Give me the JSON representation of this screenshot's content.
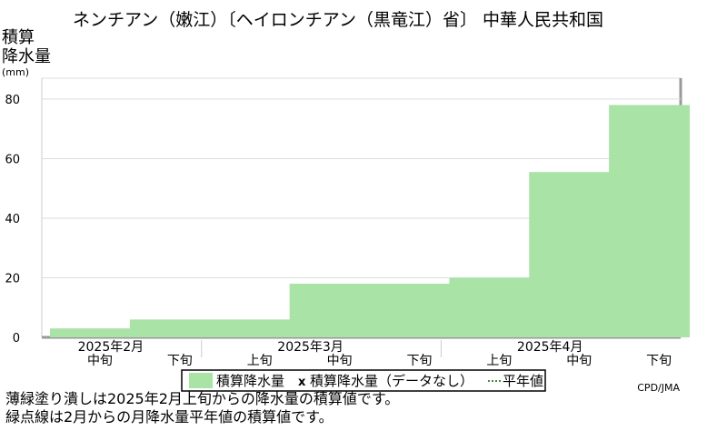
{
  "title": "ネンチアン（嫩江）〔ヘイロンチアン（黒竜江）省〕 中華人民共和国",
  "credit": "CPD/JMA",
  "notes": [
    "薄緑塗り潰しは2025年2月上旬からの降水量の積算値です。",
    "緑点線は2月からの月降水量平年値の積算値です。"
  ],
  "colors": {
    "fill": "#aae3a6",
    "frame": "#999999",
    "grid": "#dddddd"
  },
  "chart_data": {
    "type": "area",
    "ylabel_lines": [
      "積算",
      "降水量",
      "(mm)"
    ],
    "ylim": [
      0,
      87
    ],
    "yticks": [
      0,
      20,
      40,
      60,
      80
    ],
    "periods": [
      "中旬",
      "下旬",
      "上旬",
      "中旬",
      "下旬",
      "上旬",
      "中旬",
      "下旬"
    ],
    "months": [
      {
        "label": "2025年2月",
        "span": [
          0,
          2
        ]
      },
      {
        "label": "2025年3月",
        "span": [
          2,
          5
        ]
      },
      {
        "label": "2025年4月",
        "span": [
          5,
          8
        ]
      }
    ],
    "series": [
      {
        "name": "積算降水量",
        "values": [
          3,
          6,
          6,
          18,
          18,
          20,
          55.5,
          78
        ]
      }
    ],
    "legend": {
      "position": "bottom",
      "entries": [
        "積算降水量",
        "積算降水量（データなし）",
        "平年値"
      ],
      "no_data_marker": "x"
    }
  }
}
